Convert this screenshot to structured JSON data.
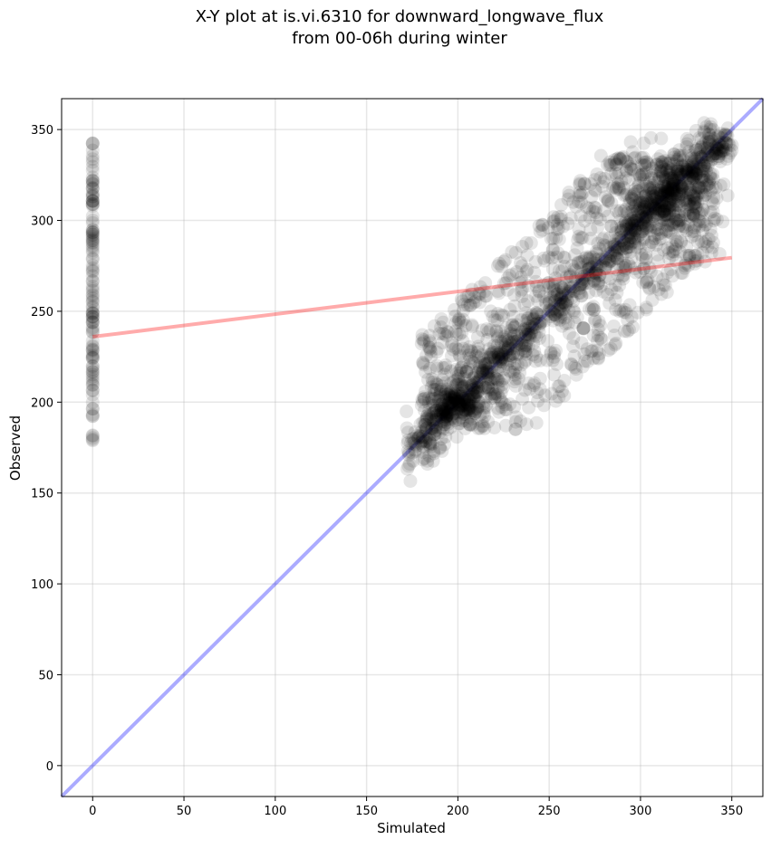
{
  "chart_data": {
    "type": "scatter",
    "title": "X-Y plot at is.vi.6310 for downward_longwave_flux\nfrom 00-06h during winter",
    "xlabel": "Simulated",
    "ylabel": "Observed",
    "xlim": [
      -17,
      367
    ],
    "ylim": [
      -17,
      367
    ],
    "xticks": [
      0,
      50,
      100,
      150,
      200,
      250,
      300,
      350
    ],
    "yticks": [
      0,
      50,
      100,
      150,
      200,
      250,
      300,
      350
    ],
    "grid": true,
    "legend": "none",
    "point_color": "#000000",
    "point_alpha": 0.1,
    "reference_line": {
      "x": [
        -17,
        367
      ],
      "y": [
        -17,
        367
      ],
      "color": "#0000ff",
      "alpha": 0.33
    },
    "fit_line": {
      "x": [
        0,
        350
      ],
      "y": [
        236,
        279.5
      ],
      "color": "#ff0000",
      "alpha": 0.33
    },
    "series": [
      {
        "generator": "column",
        "x": 0,
        "y_min": 178,
        "y_max": 343,
        "count": 120
      },
      {
        "generator": "diagonal",
        "x_min": 172,
        "x_max": 348,
        "spread": 5,
        "count": 650
      },
      {
        "generator": "cluster",
        "cx": 200,
        "cy": 200,
        "sx": 7,
        "sy": 6,
        "count": 140
      },
      {
        "generator": "cluster",
        "cx": 315,
        "cy": 312,
        "sx": 14,
        "sy": 14,
        "count": 320
      },
      {
        "generator": "cloud",
        "x_min": 180,
        "x_max": 340,
        "y_min": 185,
        "y_max": 335,
        "count": 1050
      },
      {
        "generator": "cluster",
        "cx": 344,
        "cy": 339,
        "sx": 3,
        "sy": 2,
        "count": 30
      }
    ]
  }
}
